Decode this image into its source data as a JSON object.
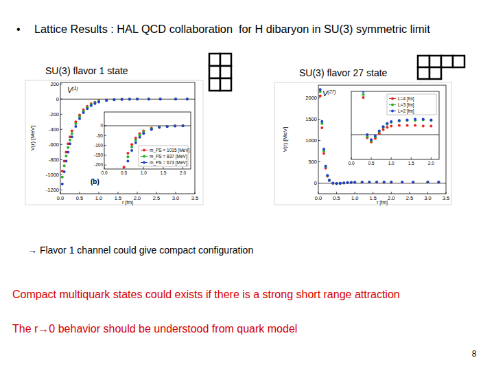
{
  "slide": {
    "bullet": "•",
    "title": "Lattice Results : HAL QCD collaboration  for H dibaryon in SU(3) symmetric limit",
    "panel_labels": [
      "SU(3) flavor 1 state",
      "SU(3) flavor 27 state"
    ],
    "conclusion": "→ Flavor 1 channel could give compact configuration",
    "remarks": [
      "Compact multiquark states could exists if there is a strong short range attraction",
      "The r→0 behavior should be understood from quark model"
    ],
    "page_number": "8"
  },
  "chart_data": [
    {
      "type": "scatter",
      "title": "V",
      "title_superscript": "(1)",
      "x_label": "r [fm]",
      "y_label": "V(r) [MeV]",
      "annotations": [
        "(b)"
      ],
      "marker": "circle",
      "legend": "lower right",
      "x": [
        0.05,
        0.1,
        0.15,
        0.2,
        0.25,
        0.3,
        0.4,
        0.5,
        0.6,
        0.7,
        0.8,
        0.9,
        1.0,
        1.2,
        1.4,
        1.6,
        1.8,
        2.0,
        2.3,
        2.6,
        3.0,
        3.3
      ],
      "xlim": [
        0,
        3.5
      ],
      "xticks": [
        {
          "value": 0,
          "label": "0.0"
        },
        {
          "value": 0.5,
          "label": "0.5"
        },
        {
          "value": 1,
          "label": "1.0"
        },
        {
          "value": 1.5,
          "label": "1.5"
        },
        {
          "value": 2,
          "label": "2.0"
        },
        {
          "value": 2.5,
          "label": "2.5"
        },
        {
          "value": 3,
          "label": "3.0"
        },
        {
          "value": 3.5,
          "label": "3.5"
        }
      ],
      "ylim": [
        -1250,
        220
      ],
      "yticks": [
        -1200,
        -1000,
        -800,
        -600,
        -400,
        -200,
        0,
        200
      ],
      "series": [
        {
          "name": "m_PS = 1015 [MeV]",
          "color": "#e8261f",
          "values": [
            -950,
            -820,
            -700,
            -590,
            -500,
            -420,
            -300,
            -210,
            -140,
            -95,
            -62,
            -40,
            -26,
            -12,
            -6,
            -3,
            -1,
            0,
            0,
            0,
            0,
            0
          ]
        },
        {
          "name": "m_PS = 837 [MeV]",
          "color": "#22b022",
          "values": [
            -1030,
            -880,
            -750,
            -640,
            -540,
            -455,
            -325,
            -230,
            -158,
            -108,
            -72,
            -47,
            -31,
            -15,
            -7,
            -3,
            -1,
            0,
            0,
            0,
            0,
            0
          ]
        },
        {
          "name": "m_PS = 673 [MeV]",
          "color": "#1f3fd0",
          "values": [
            -1120,
            -960,
            -820,
            -700,
            -590,
            -500,
            -360,
            -258,
            -180,
            -126,
            -86,
            -58,
            -39,
            -19,
            -9,
            -4,
            -2,
            -1,
            0,
            0,
            0,
            0
          ]
        }
      ],
      "inset": {
        "xlim": [
          0,
          2.2
        ],
        "xticks": [
          {
            "value": 0,
            "label": "0.0"
          },
          {
            "value": 0.5,
            "label": "0.5"
          },
          {
            "value": 1,
            "label": "1.0"
          },
          {
            "value": 1.5,
            "label": "1.5"
          },
          {
            "value": 2,
            "label": "2.0"
          }
        ],
        "ylim": [
          -220,
          70
        ],
        "yticks": [
          -200,
          -150,
          -100,
          -50,
          0
        ]
      }
    },
    {
      "type": "scatter",
      "title": "V",
      "title_superscript": "(27)",
      "x_label": "r [fm]",
      "y_label": "V(r) [MeV]",
      "marker": "circle",
      "legend": "upper right",
      "x": [
        0.05,
        0.1,
        0.15,
        0.2,
        0.25,
        0.3,
        0.4,
        0.5,
        0.6,
        0.7,
        0.8,
        0.9,
        1.0,
        1.2,
        1.4,
        1.6,
        1.8,
        2.0,
        2.3,
        2.6,
        3.0,
        3.3
      ],
      "xlim": [
        0,
        3.5
      ],
      "xticks": [
        {
          "value": 0,
          "label": "0.0"
        },
        {
          "value": 0.5,
          "label": "0.5"
        },
        {
          "value": 1,
          "label": "1.0"
        },
        {
          "value": 1.5,
          "label": "1.5"
        },
        {
          "value": 2,
          "label": "2.0"
        },
        {
          "value": 2.5,
          "label": "2.5"
        },
        {
          "value": 3,
          "label": "3.0"
        },
        {
          "value": 3.5,
          "label": "3.5"
        }
      ],
      "ylim": [
        -250,
        2300
      ],
      "yticks": [
        0,
        500,
        1000,
        1500,
        2000
      ],
      "series": [
        {
          "name": "L=4 [fm]",
          "color": "#e8261f",
          "values": [
            2050,
            1300,
            700,
            350,
            160,
            60,
            -5,
            -12,
            -6,
            2,
            8,
            12,
            14,
            15,
            15,
            15,
            14,
            14,
            15,
            14,
            15,
            14
          ]
        },
        {
          "name": "L=3 [fm]",
          "color": "#22b022",
          "values": [
            2150,
            1400,
            760,
            380,
            170,
            65,
            -3,
            -10,
            -4,
            5,
            12,
            17,
            20,
            22,
            23,
            23,
            24,
            23,
            24,
            23,
            23,
            24
          ]
        },
        {
          "name": "L=2 [fm]",
          "color": "#1f3fd0",
          "values": [
            2200,
            1450,
            800,
            400,
            180,
            70,
            0,
            -8,
            -2,
            6,
            13,
            18,
            21,
            23,
            24,
            25,
            25,
            24,
            24,
            24,
            24,
            24
          ]
        }
      ],
      "inset": {
        "xlim": [
          0,
          2.2
        ],
        "xticks": [
          {
            "value": 0,
            "label": "0.0"
          },
          {
            "value": 0.5,
            "label": "0.5"
          },
          {
            "value": 1,
            "label": "1.0"
          },
          {
            "value": 1.5,
            "label": "1.5"
          },
          {
            "value": 2,
            "label": "2.0"
          }
        ],
        "ylim": [
          -40,
          70
        ],
        "tick_labels": "x"
      }
    }
  ]
}
